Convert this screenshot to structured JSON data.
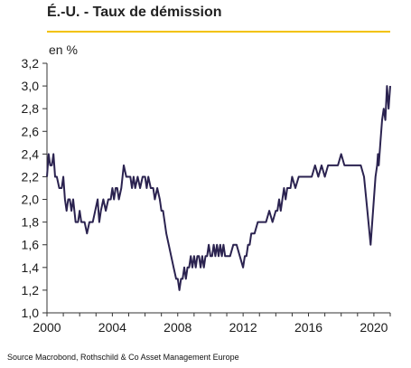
{
  "chart_data": {
    "type": "line",
    "title": "É.-U. - Taux de démission",
    "unit_label": "en %",
    "source": "Source Macrobond, Rothschild & Co Asset Management Europe",
    "xlabel": "",
    "ylabel": "",
    "xlim": [
      2000.0,
      2021.0
    ],
    "ylim": [
      1.0,
      3.2
    ],
    "y_ticks": [
      "1,0",
      "1,2",
      "1,4",
      "1,6",
      "1,8",
      "2,0",
      "2,2",
      "2,4",
      "2,6",
      "2,8",
      "3,0",
      "3,2"
    ],
    "y_tick_values": [
      1.0,
      1.2,
      1.4,
      1.6,
      1.8,
      2.0,
      2.2,
      2.4,
      2.6,
      2.8,
      3.0,
      3.2
    ],
    "x_ticks": [
      "2000",
      "2004",
      "2008",
      "2012",
      "2016",
      "2020"
    ],
    "x_tick_values": [
      2000,
      2004,
      2008,
      2012,
      2016,
      2020
    ],
    "grid": false,
    "colors": {
      "line": "#2b2350",
      "accent_rule": "#f2c200",
      "axis": "#333333"
    },
    "series": [
      {
        "x": [
          2000.0,
          2000.1,
          2000.2,
          2000.3,
          2000.4,
          2000.5,
          2000.6,
          2000.75,
          2000.9,
          2001.0,
          2001.1,
          2001.2,
          2001.3,
          2001.4,
          2001.5,
          2001.6,
          2001.75,
          2001.9,
          2002.0,
          2002.1,
          2002.2,
          2002.3,
          2002.45,
          2002.6,
          2002.8,
          2002.95,
          2003.1,
          2003.2,
          2003.3,
          2003.45,
          2003.6,
          2003.75,
          2003.9,
          2004.0,
          2004.1,
          2004.2,
          2004.3,
          2004.4,
          2004.55,
          2004.7,
          2004.85,
          2005.0,
          2005.1,
          2005.2,
          2005.3,
          2005.4,
          2005.55,
          2005.7,
          2005.85,
          2006.0,
          2006.1,
          2006.2,
          2006.35,
          2006.5,
          2006.6,
          2006.75,
          2006.9,
          2007.0,
          2007.1,
          2007.2,
          2007.3,
          2007.45,
          2007.6,
          2007.75,
          2007.9,
          2008.0,
          2008.1,
          2008.2,
          2008.3,
          2008.4,
          2008.5,
          2008.6,
          2008.7,
          2008.8,
          2008.9,
          2009.0,
          2009.1,
          2009.2,
          2009.3,
          2009.4,
          2009.5,
          2009.6,
          2009.7,
          2009.8,
          2009.9,
          2010.0,
          2010.1,
          2010.2,
          2010.3,
          2010.4,
          2010.5,
          2010.6,
          2010.7,
          2010.8,
          2010.9,
          2011.0,
          2011.2,
          2011.4,
          2011.6,
          2011.8,
          2012.0,
          2012.1,
          2012.2,
          2012.3,
          2012.4,
          2012.5,
          2012.7,
          2012.9,
          2013.0,
          2013.2,
          2013.4,
          2013.6,
          2013.8,
          2014.0,
          2014.1,
          2014.2,
          2014.3,
          2014.4,
          2014.5,
          2014.6,
          2014.7,
          2014.8,
          2014.9,
          2015.0,
          2015.2,
          2015.4,
          2015.6,
          2015.8,
          2016.0,
          2016.2,
          2016.4,
          2016.6,
          2016.8,
          2017.0,
          2017.2,
          2017.4,
          2017.6,
          2017.8,
          2018.0,
          2018.2,
          2018.4,
          2018.6,
          2018.8,
          2019.0,
          2019.2,
          2019.4,
          2019.6,
          2019.8,
          2020.0,
          2020.1,
          2020.2,
          2020.25,
          2020.3,
          2020.4,
          2020.5,
          2020.6,
          2020.7,
          2020.8,
          2020.9,
          2021.0
        ],
        "y": [
          2.2,
          2.4,
          2.3,
          2.3,
          2.4,
          2.2,
          2.2,
          2.1,
          2.1,
          2.2,
          2.0,
          1.9,
          2.0,
          2.0,
          1.9,
          2.0,
          1.8,
          1.8,
          1.9,
          1.8,
          1.8,
          1.8,
          1.7,
          1.8,
          1.8,
          1.9,
          2.0,
          1.8,
          1.9,
          2.0,
          1.9,
          2.0,
          2.0,
          2.1,
          2.0,
          2.1,
          2.1,
          2.0,
          2.1,
          2.3,
          2.2,
          2.2,
          2.2,
          2.1,
          2.2,
          2.1,
          2.2,
          2.1,
          2.2,
          2.2,
          2.1,
          2.2,
          2.1,
          2.1,
          2.0,
          2.1,
          2.0,
          1.9,
          1.9,
          1.8,
          1.7,
          1.6,
          1.5,
          1.4,
          1.3,
          1.3,
          1.2,
          1.3,
          1.3,
          1.4,
          1.3,
          1.4,
          1.4,
          1.5,
          1.4,
          1.5,
          1.4,
          1.5,
          1.5,
          1.4,
          1.5,
          1.4,
          1.5,
          1.5,
          1.6,
          1.5,
          1.5,
          1.6,
          1.5,
          1.6,
          1.5,
          1.6,
          1.5,
          1.6,
          1.5,
          1.5,
          1.5,
          1.6,
          1.6,
          1.5,
          1.4,
          1.5,
          1.5,
          1.6,
          1.6,
          1.7,
          1.7,
          1.8,
          1.8,
          1.8,
          1.8,
          1.9,
          1.8,
          1.9,
          1.9,
          2.0,
          1.9,
          2.0,
          2.1,
          2.0,
          2.1,
          2.1,
          2.1,
          2.2,
          2.1,
          2.2,
          2.2,
          2.2,
          2.2,
          2.2,
          2.3,
          2.2,
          2.3,
          2.2,
          2.3,
          2.3,
          2.3,
          2.3,
          2.4,
          2.3,
          2.3,
          2.3,
          2.3,
          2.3,
          2.3,
          2.2,
          1.9,
          1.6,
          2.0,
          2.2,
          2.3,
          2.4,
          2.3,
          2.5,
          2.7,
          2.8,
          2.7,
          3.0,
          2.8,
          3.0
        ]
      }
    ]
  }
}
